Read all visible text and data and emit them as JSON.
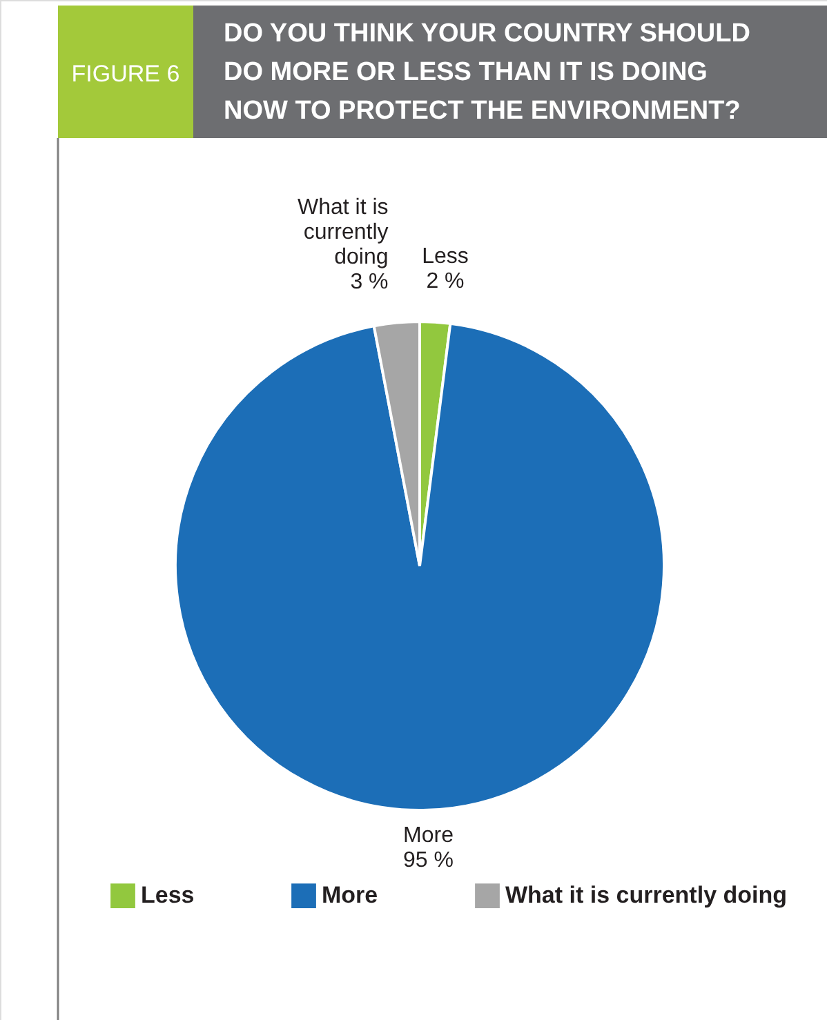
{
  "chart_data": {
    "type": "pie",
    "title": "DO YOU THINK YOUR COUNTRY SHOULD DO MORE OR LESS THAN IT IS DOING NOW TO PROTECT THE ENVIRONMENT?",
    "annotations": [
      "FIGURE 6"
    ],
    "categories": [
      "Less",
      "More",
      "What it is currently doing"
    ],
    "values": [
      2,
      95,
      3
    ],
    "colors": [
      "#92c83e",
      "#1c6eb7",
      "#a6a6a6"
    ],
    "value_labels": [
      "2 %",
      "95 %",
      "3 %"
    ],
    "legend": "bottom"
  }
}
